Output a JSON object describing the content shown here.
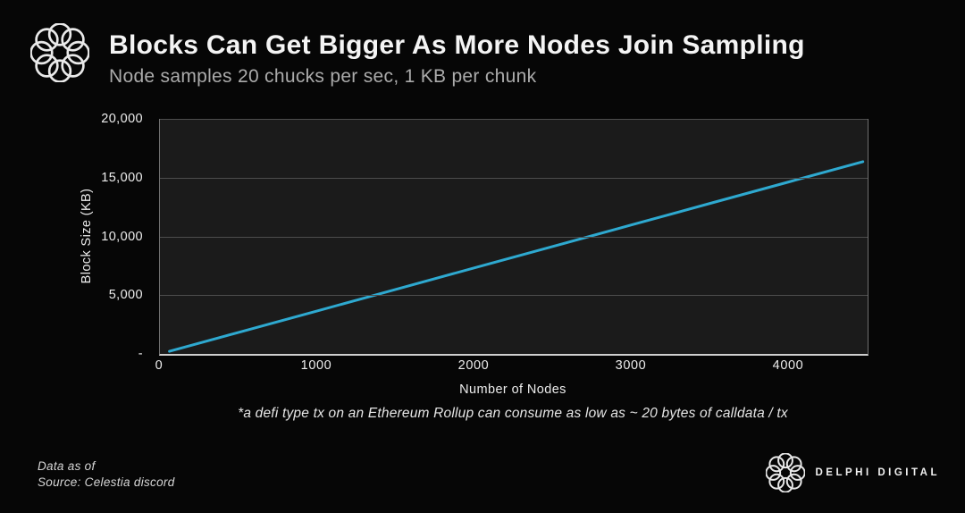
{
  "header": {
    "title": "Blocks Can Get Bigger As More Nodes Join Sampling",
    "subtitle": "Node samples 20 chucks per sec, 1 KB per chunk"
  },
  "chart_data": {
    "type": "line",
    "title": "Blocks Can Get Bigger As More Nodes Join Sampling",
    "subtitle": "Node samples 20 chucks per sec, 1 KB per chunk",
    "xlabel": "Number of Nodes",
    "ylabel": "Block Size (KB)",
    "xlim": [
      0,
      4500
    ],
    "ylim": [
      0,
      20000
    ],
    "x_ticks": [
      0,
      1000,
      2000,
      3000,
      4000
    ],
    "x_tick_labels": [
      "0",
      "1000",
      "2000",
      "3000",
      "4000"
    ],
    "y_ticks": [
      20000,
      15000,
      10000,
      5000,
      0
    ],
    "y_tick_labels": [
      "20,000",
      "15,000",
      "10,000",
      "5,000",
      "-"
    ],
    "grid": "horizontal",
    "legend": false,
    "plot_bg": "#1b1b1b",
    "gridline_color": "#4d4d4d",
    "series": [
      {
        "name": "Block Size (KB)",
        "color": "#2EA9D0",
        "x": [
          60,
          500,
          1000,
          1500,
          2000,
          2500,
          3000,
          3500,
          4000,
          4470
        ],
        "y": [
          220,
          1830,
          3660,
          5490,
          7320,
          9150,
          10980,
          12810,
          14640,
          16360
        ]
      }
    ]
  },
  "footnote": "*a defi type tx on an Ethereum Rollup can consume as low as ~ 20 bytes of calldata / tx",
  "footer": {
    "data_as_of": "Data as of",
    "source": "Source:  Celestia discord",
    "brand": "DELPHI DIGITAL"
  }
}
